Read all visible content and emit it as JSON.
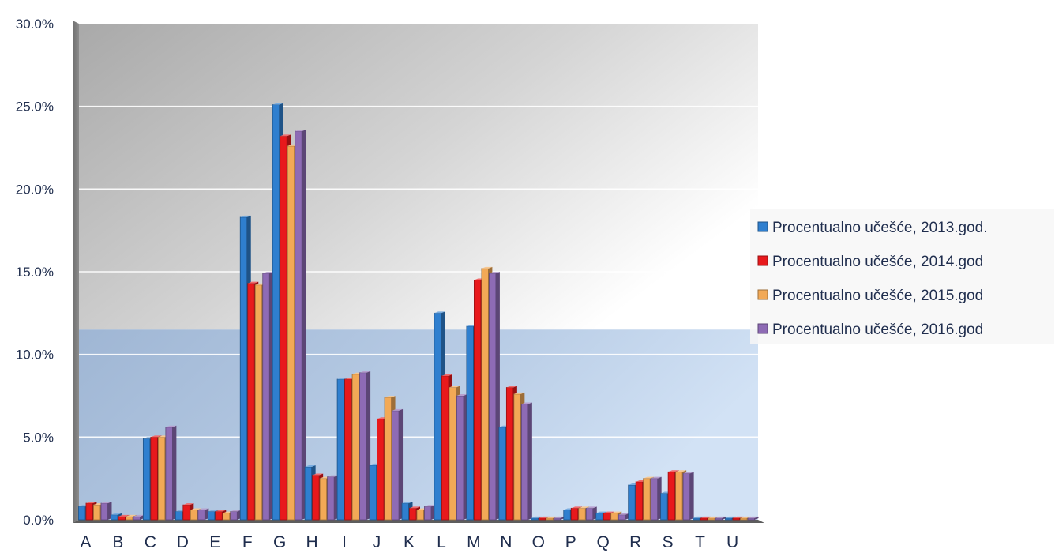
{
  "chart_data": {
    "type": "bar",
    "categories": [
      "A",
      "B",
      "C",
      "D",
      "E",
      "F",
      "G",
      "H",
      "I",
      "J",
      "K",
      "L",
      "M",
      "N",
      "O",
      "P",
      "Q",
      "R",
      "S",
      "T",
      "U"
    ],
    "series": [
      {
        "name": "Procentualno učešće, 2013.god.",
        "color": "#2f7fcf",
        "values": [
          0.8,
          0.3,
          4.9,
          0.5,
          0.5,
          18.3,
          25.1,
          3.2,
          8.5,
          3.3,
          1.0,
          12.5,
          11.7,
          5.6,
          0.1,
          0.6,
          0.4,
          2.1,
          1.6,
          0.1,
          0.1
        ]
      },
      {
        "name": "Procentualno učešće, 2014.god",
        "color": "#e8191c",
        "values": [
          1.0,
          0.2,
          5.0,
          0.9,
          0.5,
          14.3,
          23.2,
          2.7,
          8.5,
          6.1,
          0.7,
          8.7,
          14.5,
          8.0,
          0.1,
          0.7,
          0.4,
          2.3,
          2.9,
          0.1,
          0.1
        ]
      },
      {
        "name": "Procentualno učešće, 2015.god",
        "color": "#f2a956",
        "values": [
          0.9,
          0.2,
          5.0,
          0.6,
          0.4,
          14.2,
          22.6,
          2.5,
          8.8,
          7.4,
          0.6,
          8.0,
          15.2,
          7.6,
          0.1,
          0.7,
          0.4,
          2.5,
          2.9,
          0.1,
          0.1
        ]
      },
      {
        "name": "Procentualno učešće, 2016.god",
        "color": "#8e6bb5",
        "values": [
          1.0,
          0.2,
          5.6,
          0.6,
          0.5,
          14.9,
          23.5,
          2.6,
          8.9,
          6.6,
          0.8,
          7.5,
          14.9,
          7.0,
          0.1,
          0.7,
          0.3,
          2.5,
          2.8,
          0.1,
          0.1
        ]
      }
    ],
    "yticks": [
      "0.0%",
      "5.0%",
      "10.0%",
      "15.0%",
      "20.0%",
      "25.0%",
      "30.0%"
    ],
    "ylim": [
      0,
      30
    ],
    "title": "",
    "xlabel": "",
    "ylabel": "",
    "grid": true,
    "legend": "right"
  }
}
